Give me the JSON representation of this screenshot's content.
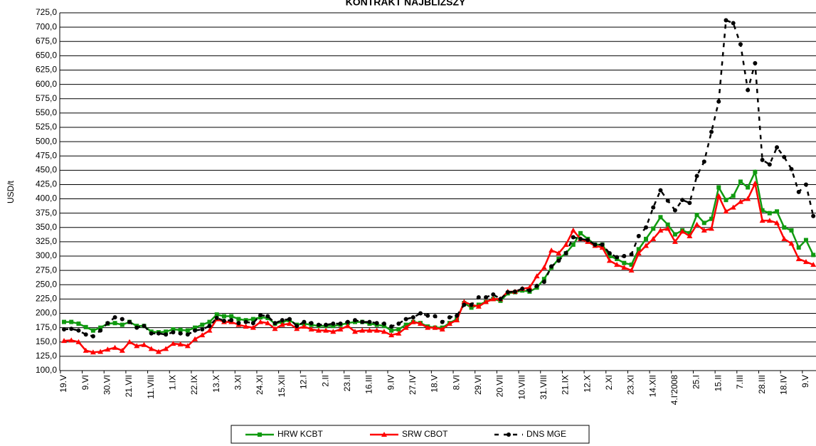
{
  "chart_data": {
    "type": "line",
    "title": "KONTRAKT NAJBLIŻSZY",
    "y_label": "USD/t",
    "categories": [
      "19.V",
      null,
      null,
      "9.VI",
      null,
      null,
      "30.VI",
      null,
      null,
      "21.VII",
      null,
      null,
      "11.VIII",
      null,
      null,
      "1.IX",
      null,
      null,
      "22.IX",
      null,
      null,
      "13.X",
      null,
      null,
      "3.XI",
      null,
      null,
      "24.XI",
      null,
      null,
      "15.XII",
      null,
      null,
      "12.I",
      null,
      null,
      "2.II",
      null,
      null,
      "23.II",
      null,
      null,
      "16.III",
      null,
      null,
      "9.IV",
      null,
      null,
      "27.IV",
      null,
      null,
      "18.V",
      null,
      null,
      "8.VI",
      null,
      null,
      "29.VI",
      null,
      null,
      "20.VII",
      null,
      null,
      "10.VIII",
      null,
      null,
      "31.VIII",
      null,
      null,
      "21.IX",
      null,
      null,
      "12.X",
      null,
      null,
      "2.XI",
      null,
      null,
      "23.XI",
      null,
      null,
      "14.XII",
      null,
      null,
      "4.I'2008",
      null,
      null,
      "25.I",
      null,
      null,
      "15.II",
      null,
      null,
      "7.III",
      null,
      null,
      "28.III",
      null,
      null,
      "18.IV",
      null,
      null,
      "9.V",
      null
    ],
    "series": [
      {
        "name": "HRW KCBT",
        "color": "#109a10",
        "marker": "square",
        "dash": false,
        "values": [
          185,
          185,
          182,
          176,
          170,
          175,
          182,
          183,
          180,
          185,
          178,
          178,
          168,
          167,
          168,
          172,
          171,
          170,
          175,
          180,
          185,
          198,
          195,
          195,
          190,
          188,
          190,
          193,
          192,
          182,
          185,
          188,
          180,
          182,
          180,
          178,
          178,
          178,
          180,
          183,
          185,
          185,
          182,
          180,
          178,
          170,
          172,
          180,
          185,
          183,
          177,
          175,
          175,
          183,
          190,
          218,
          210,
          215,
          220,
          225,
          222,
          235,
          237,
          240,
          238,
          245,
          260,
          280,
          295,
          305,
          320,
          340,
          330,
          320,
          320,
          300,
          295,
          288,
          285,
          312,
          330,
          348,
          368,
          355,
          338,
          345,
          340,
          372,
          358,
          365,
          420,
          398,
          405,
          430,
          420,
          447,
          380,
          375,
          378,
          350,
          345,
          315,
          328,
          302
        ]
      },
      {
        "name": "SRW CBOT",
        "color": "#ff0000",
        "marker": "triangle",
        "dash": false,
        "values": [
          152,
          153,
          150,
          135,
          132,
          133,
          137,
          140,
          135,
          150,
          143,
          145,
          138,
          133,
          138,
          147,
          146,
          143,
          155,
          162,
          170,
          190,
          185,
          185,
          180,
          177,
          175,
          185,
          183,
          173,
          180,
          182,
          173,
          177,
          172,
          170,
          170,
          168,
          172,
          178,
          168,
          170,
          170,
          170,
          168,
          162,
          165,
          175,
          185,
          182,
          175,
          175,
          172,
          182,
          188,
          220,
          215,
          212,
          220,
          225,
          225,
          238,
          238,
          243,
          245,
          265,
          280,
          310,
          305,
          320,
          345,
          330,
          325,
          318,
          315,
          292,
          285,
          280,
          275,
          305,
          318,
          330,
          345,
          348,
          325,
          343,
          335,
          355,
          345,
          348,
          405,
          378,
          385,
          395,
          400,
          427,
          362,
          362,
          358,
          330,
          322,
          295,
          290,
          285
        ]
      },
      {
        "name": "DNS MGE",
        "color": "#000000",
        "marker": "circle",
        "dash": true,
        "values": [
          172,
          173,
          170,
          163,
          160,
          170,
          183,
          193,
          190,
          185,
          175,
          178,
          165,
          165,
          163,
          167,
          165,
          163,
          170,
          172,
          178,
          192,
          187,
          188,
          183,
          185,
          183,
          197,
          195,
          183,
          188,
          190,
          178,
          185,
          183,
          180,
          180,
          182,
          182,
          185,
          188,
          185,
          185,
          183,
          182,
          177,
          182,
          190,
          193,
          200,
          196,
          195,
          185,
          193,
          196,
          215,
          215,
          228,
          228,
          233,
          225,
          237,
          238,
          243,
          240,
          248,
          255,
          282,
          292,
          305,
          333,
          330,
          328,
          320,
          320,
          305,
          298,
          300,
          303,
          335,
          350,
          385,
          415,
          397,
          380,
          398,
          393,
          440,
          465,
          517,
          570,
          712,
          707,
          670,
          590,
          637,
          468,
          460,
          490,
          473,
          452,
          412,
          425,
          370
        ]
      }
    ],
    "ylim": [
      100,
      725
    ],
    "yticks": [
      {
        "value": 100,
        "label": "100,0"
      },
      {
        "value": 125,
        "label": "125,0"
      },
      {
        "value": 150,
        "label": "150,0"
      },
      {
        "value": 175,
        "label": "175,0"
      },
      {
        "value": 200,
        "label": "200,0"
      },
      {
        "value": 225,
        "label": "225,0"
      },
      {
        "value": 250,
        "label": "250,0"
      },
      {
        "value": 275,
        "label": "275,0"
      },
      {
        "value": 300,
        "label": "300,0"
      },
      {
        "value": 325,
        "label": "325,0"
      },
      {
        "value": 350,
        "label": "350,0"
      },
      {
        "value": 375,
        "label": "375,0"
      },
      {
        "value": 400,
        "label": "400,0"
      },
      {
        "value": 425,
        "label": "425,0"
      },
      {
        "value": 450,
        "label": "450,0"
      },
      {
        "value": 475,
        "label": "475,0"
      },
      {
        "value": 500,
        "label": "500,0"
      },
      {
        "value": 525,
        "label": "525,0"
      },
      {
        "value": 550,
        "label": "550,0"
      },
      {
        "value": 575,
        "label": "575,0"
      },
      {
        "value": 600,
        "label": "600,0"
      },
      {
        "value": 625,
        "label": "625,0"
      },
      {
        "value": 650,
        "label": "650,0"
      },
      {
        "value": 675,
        "label": "675,0"
      },
      {
        "value": 700,
        "label": "700,0"
      },
      {
        "value": 725,
        "label": "725,0"
      }
    ],
    "grid": true,
    "legend": "bottom"
  }
}
